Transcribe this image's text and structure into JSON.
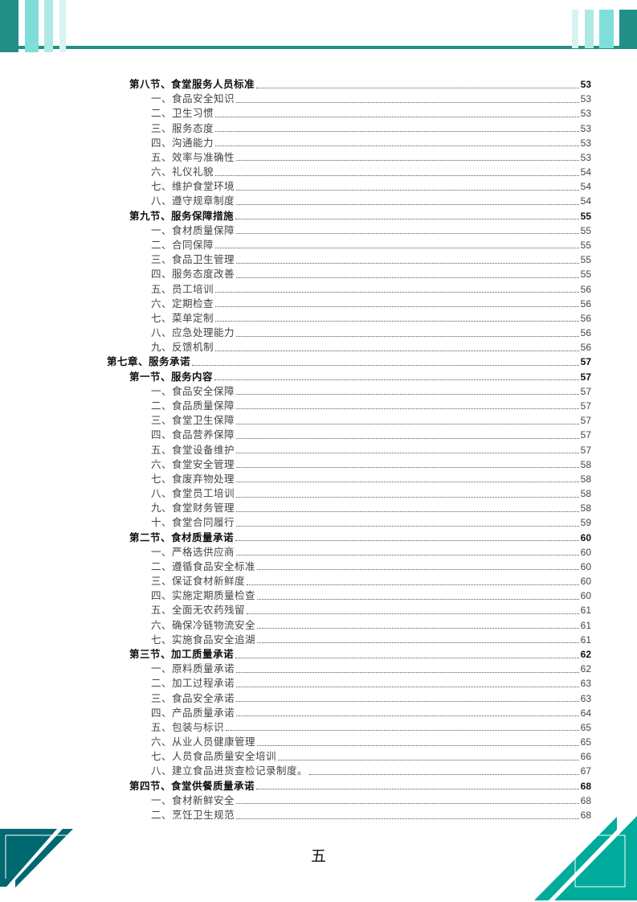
{
  "colors": {
    "dark_teal": "#238f86",
    "mid_teal": "#7fded9",
    "light_teal": "#afe9e4",
    "pale_teal": "#d8f4f2",
    "footer_left": "#006870",
    "footer_right": "#00ab9b"
  },
  "toc": [
    {
      "level": 2,
      "title": "第八节、食堂服务人员标准",
      "page": "53"
    },
    {
      "level": 3,
      "title": "一、食品安全知识",
      "page": "53"
    },
    {
      "level": 3,
      "title": "二、卫生习惯",
      "page": "53"
    },
    {
      "level": 3,
      "title": "三、服务态度",
      "page": "53"
    },
    {
      "level": 3,
      "title": "四、沟通能力",
      "page": "53"
    },
    {
      "level": 3,
      "title": "五、效率与准确性",
      "page": "53"
    },
    {
      "level": 3,
      "title": "六、礼仪礼貌",
      "page": "54"
    },
    {
      "level": 3,
      "title": "七、维护食堂环境",
      "page": "54"
    },
    {
      "level": 3,
      "title": "八、遵守规章制度",
      "page": "54"
    },
    {
      "level": 2,
      "title": "第九节、服务保障措施",
      "page": "55"
    },
    {
      "level": 3,
      "title": "一、食材质量保障",
      "page": "55"
    },
    {
      "level": 3,
      "title": "二、合同保障",
      "page": "55"
    },
    {
      "level": 3,
      "title": "三、食品卫生管理",
      "page": "55"
    },
    {
      "level": 3,
      "title": "四、服务态度改善",
      "page": "55"
    },
    {
      "level": 3,
      "title": "五、员工培训",
      "page": "56"
    },
    {
      "level": 3,
      "title": "六、定期检查",
      "page": "56"
    },
    {
      "level": 3,
      "title": "七、菜单定制",
      "page": "56"
    },
    {
      "level": 3,
      "title": "八、应急处理能力",
      "page": "56"
    },
    {
      "level": 3,
      "title": "九、反馈机制",
      "page": "56"
    },
    {
      "level": 1,
      "title": "第七章、服务承诺",
      "page": "57"
    },
    {
      "level": 2,
      "title": "第一节、服务内容",
      "page": "57"
    },
    {
      "level": 3,
      "title": "一、食品安全保障",
      "page": "57"
    },
    {
      "level": 3,
      "title": "二、食品质量保障",
      "page": "57"
    },
    {
      "level": 3,
      "title": "三、食堂卫生保障",
      "page": "57"
    },
    {
      "level": 3,
      "title": "四、食品营养保障",
      "page": "57"
    },
    {
      "level": 3,
      "title": "五、食堂设备维护",
      "page": "57"
    },
    {
      "level": 3,
      "title": "六、食堂安全管理",
      "page": "58"
    },
    {
      "level": 3,
      "title": "七、食废弃物处理",
      "page": "58"
    },
    {
      "level": 3,
      "title": "八、食堂员工培训",
      "page": "58"
    },
    {
      "level": 3,
      "title": "九、食堂财务管理",
      "page": "58"
    },
    {
      "level": 3,
      "title": "十、食堂合同履行",
      "page": "59"
    },
    {
      "level": 2,
      "title": "第二节、食材质量承诺",
      "page": "60"
    },
    {
      "level": 3,
      "title": "一、严格选供应商",
      "page": "60"
    },
    {
      "level": 3,
      "title": "二、遵循食品安全标准",
      "page": "60"
    },
    {
      "level": 3,
      "title": "三、保证食材新鲜度",
      "page": "60"
    },
    {
      "level": 3,
      "title": "四、实施定期质量检查",
      "page": "60"
    },
    {
      "level": 3,
      "title": "五、全面无农药残留",
      "page": "61"
    },
    {
      "level": 3,
      "title": "六、确保冷链物流安全",
      "page": "61"
    },
    {
      "level": 3,
      "title": "七、实施食品安全追湖",
      "page": "61"
    },
    {
      "level": 2,
      "title": "第三节、加工质量承诺",
      "page": "62"
    },
    {
      "level": 3,
      "title": "一、原料质量承诺",
      "page": "62"
    },
    {
      "level": 3,
      "title": "二、加工过程承诺",
      "page": "63"
    },
    {
      "level": 3,
      "title": "三、食品安全承诺",
      "page": "63"
    },
    {
      "level": 3,
      "title": "四、产品质量承诺",
      "page": "64"
    },
    {
      "level": 3,
      "title": "五、包装与标识",
      "page": "65"
    },
    {
      "level": 3,
      "title": "六、从业人员健康管理",
      "page": "65"
    },
    {
      "level": 3,
      "title": "七、人员食品质量安全培训",
      "page": "66"
    },
    {
      "level": 3,
      "title": "八、建立食品进货查检记录制度。",
      "page": "67"
    },
    {
      "level": 2,
      "title": "第四节、食堂供餐质量承诺",
      "page": "68"
    },
    {
      "level": 3,
      "title": "一、食材新鲜安全",
      "page": "68"
    },
    {
      "level": 3,
      "title": "二、烹饪卫生规范",
      "page": "68"
    }
  ],
  "page_number": "五"
}
